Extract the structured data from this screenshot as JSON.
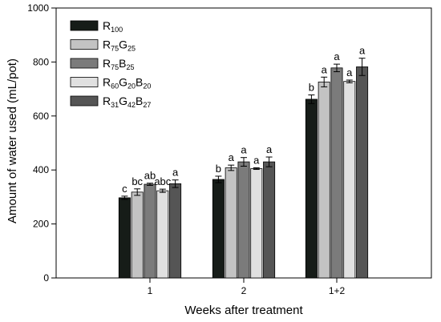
{
  "chart_data": {
    "type": "bar",
    "title": "",
    "xlabel": "Weeks after treatment",
    "ylabel": "Amount of water used (mL/pot)",
    "ylim": [
      0,
      1000
    ],
    "yticks": [
      0,
      200,
      400,
      600,
      800,
      1000
    ],
    "grid": false,
    "legend_position": "top-left",
    "categories": [
      "1",
      "2",
      "1+2"
    ],
    "series": [
      {
        "name": "R100",
        "legend_parts": [
          [
            "R",
            ""
          ],
          [
            "100",
            "sub"
          ]
        ],
        "color": "#161c18",
        "values": [
          297,
          365,
          662
        ],
        "errors": [
          6,
          12,
          16
        ],
        "labels": [
          "c",
          "b",
          "b"
        ]
      },
      {
        "name": "R75G25",
        "legend_parts": [
          [
            "R",
            ""
          ],
          [
            "75",
            "sub"
          ],
          [
            "G",
            ""
          ],
          [
            "25",
            "sub"
          ]
        ],
        "color": "#c3c3c3",
        "values": [
          318,
          408,
          726
        ],
        "errors": [
          12,
          10,
          18
        ],
        "labels": [
          "bc",
          "a",
          "a"
        ]
      },
      {
        "name": "R75B25",
        "legend_parts": [
          [
            "R",
            ""
          ],
          [
            "75",
            "sub"
          ],
          [
            "B",
            ""
          ],
          [
            "25",
            "sub"
          ]
        ],
        "color": "#7b7b7b",
        "values": [
          347,
          430,
          778
        ],
        "errors": [
          4,
          16,
          14
        ],
        "labels": [
          "ab",
          "a",
          "a"
        ]
      },
      {
        "name": "R60G20B20",
        "legend_parts": [
          [
            "R",
            ""
          ],
          [
            "60",
            "sub"
          ],
          [
            "G",
            ""
          ],
          [
            "20",
            "sub"
          ],
          [
            "B",
            ""
          ],
          [
            "20",
            "sub"
          ]
        ],
        "color": "#e0e0e0",
        "values": [
          323,
          405,
          728
        ],
        "errors": [
          6,
          3,
          5
        ],
        "labels": [
          "abc",
          "a",
          "a"
        ]
      },
      {
        "name": "R31G42B27",
        "legend_parts": [
          [
            "R",
            ""
          ],
          [
            "31",
            "sub"
          ],
          [
            "G",
            ""
          ],
          [
            "42",
            "sub"
          ],
          [
            "B",
            ""
          ],
          [
            "27",
            "sub"
          ]
        ],
        "color": "#555555",
        "values": [
          349,
          430,
          782
        ],
        "errors": [
          14,
          18,
          32
        ],
        "labels": [
          "a",
          "a",
          "a"
        ]
      }
    ]
  }
}
